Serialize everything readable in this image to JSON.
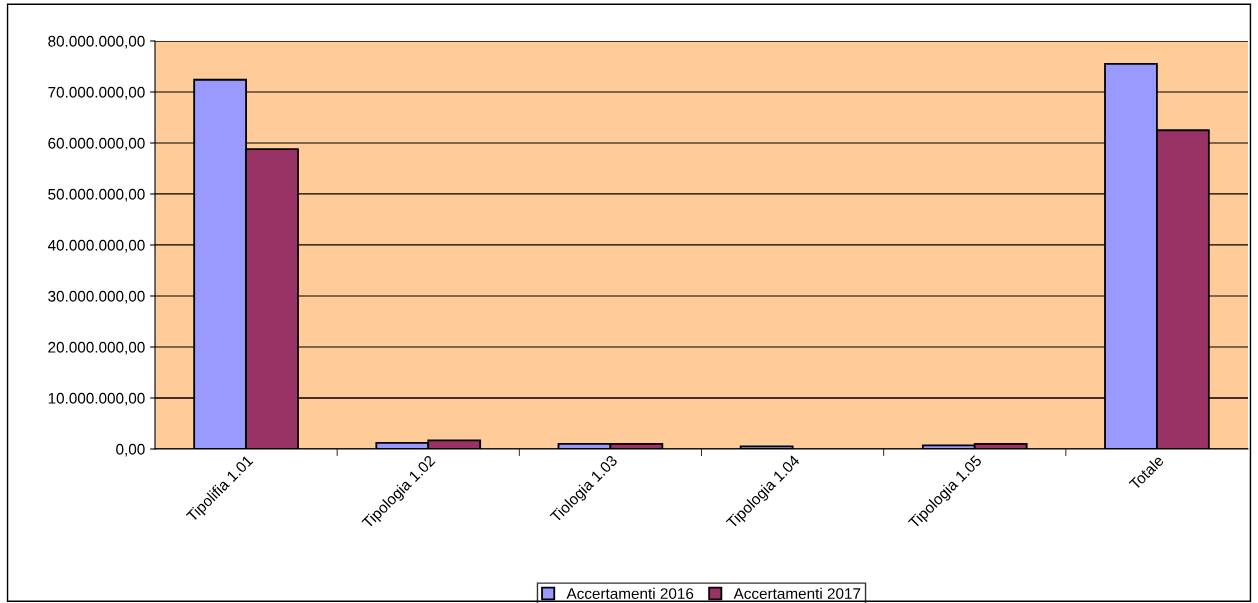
{
  "chart_data": {
    "type": "bar",
    "categories": [
      "Tipolifia 1.01",
      "Tipologia 1.02",
      "Tiologia 1.03",
      "Tipologia 1.04",
      "Tipologia 1.05",
      "Totale"
    ],
    "series": [
      {
        "name": "Accertamenti 2016",
        "color": "#9999ff",
        "values": [
          72400000,
          1200000,
          1000000,
          500000,
          700000,
          75500000
        ]
      },
      {
        "name": "Accertamenti 2017",
        "color": "#993366",
        "values": [
          58800000,
          1700000,
          1000000,
          null,
          1000000,
          62500000
        ]
      }
    ],
    "ylim": [
      0,
      80000000
    ],
    "yticks": [
      {
        "value": 0,
        "label": "0,00"
      },
      {
        "value": 10000000,
        "label": "10.000.000,00"
      },
      {
        "value": 20000000,
        "label": "20.000.000,00"
      },
      {
        "value": 30000000,
        "label": "30.000.000,00"
      },
      {
        "value": 40000000,
        "label": "40.000.000,00"
      },
      {
        "value": 50000000,
        "label": "50.000.000,00"
      },
      {
        "value": 60000000,
        "label": "60.000.000,00"
      },
      {
        "value": 70000000,
        "label": "70.000.000,00"
      },
      {
        "value": 80000000,
        "label": "80.000.000,00"
      }
    ],
    "grid": "y",
    "legend": "bottom"
  }
}
